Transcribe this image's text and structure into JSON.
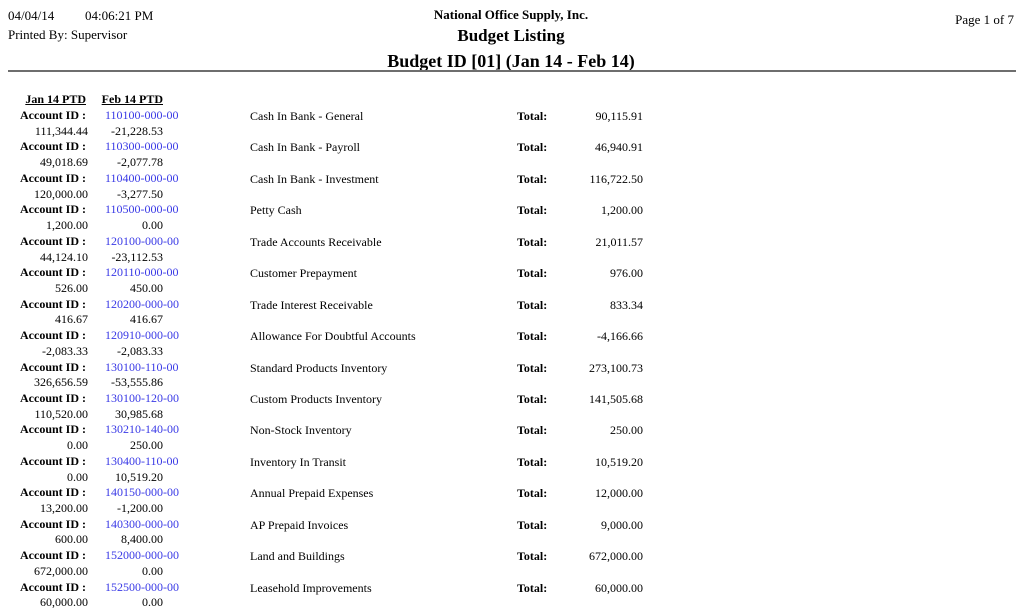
{
  "header": {
    "date": "04/04/14",
    "time": "04:06:21 PM",
    "printed_by_label": "Printed By:",
    "printed_by_value": "Supervisor",
    "company": "National Office Supply, Inc.",
    "report_title": "Budget Listing",
    "report_subtitle": "Budget ID [01] (Jan 14 - Feb 14)",
    "page_indicator": "Page 1 of 7"
  },
  "columns": {
    "jan_header": "Jan 14 PTD",
    "feb_header": "Feb 14 PTD"
  },
  "labels": {
    "account_id": "Account ID :",
    "total": "Total:"
  },
  "colors": {
    "account_link": "#3939e6",
    "rule": "#6e6e6e",
    "text": "#000000"
  },
  "rows": [
    {
      "account_id": "110100-000-00",
      "description": "Cash In Bank - General",
      "total": "90,115.91",
      "jan": "111,344.44",
      "feb": "-21,228.53"
    },
    {
      "account_id": "110300-000-00",
      "description": "Cash In Bank - Payroll",
      "total": "46,940.91",
      "jan": "49,018.69",
      "feb": "-2,077.78"
    },
    {
      "account_id": "110400-000-00",
      "description": "Cash In Bank - Investment",
      "total": "116,722.50",
      "jan": "120,000.00",
      "feb": "-3,277.50"
    },
    {
      "account_id": "110500-000-00",
      "description": "Petty Cash",
      "total": "1,200.00",
      "jan": "1,200.00",
      "feb": "0.00"
    },
    {
      "account_id": "120100-000-00",
      "description": "Trade Accounts Receivable",
      "total": "21,011.57",
      "jan": "44,124.10",
      "feb": "-23,112.53"
    },
    {
      "account_id": "120110-000-00",
      "description": "Customer Prepayment",
      "total": "976.00",
      "jan": "526.00",
      "feb": "450.00"
    },
    {
      "account_id": "120200-000-00",
      "description": "Trade Interest Receivable",
      "total": "833.34",
      "jan": "416.67",
      "feb": "416.67"
    },
    {
      "account_id": "120910-000-00",
      "description": "Allowance For Doubtful Accounts",
      "total": "-4,166.66",
      "jan": "-2,083.33",
      "feb": "-2,083.33"
    },
    {
      "account_id": "130100-110-00",
      "description": "Standard Products Inventory",
      "total": "273,100.73",
      "jan": "326,656.59",
      "feb": "-53,555.86"
    },
    {
      "account_id": "130100-120-00",
      "description": "Custom Products Inventory",
      "total": "141,505.68",
      "jan": "110,520.00",
      "feb": "30,985.68"
    },
    {
      "account_id": "130210-140-00",
      "description": "Non-Stock Inventory",
      "total": "250.00",
      "jan": "0.00",
      "feb": "250.00"
    },
    {
      "account_id": "130400-110-00",
      "description": "Inventory In Transit",
      "total": "10,519.20",
      "jan": "0.00",
      "feb": "10,519.20"
    },
    {
      "account_id": "140150-000-00",
      "description": "Annual Prepaid Expenses",
      "total": "12,000.00",
      "jan": "13,200.00",
      "feb": "-1,200.00"
    },
    {
      "account_id": "140300-000-00",
      "description": "AP Prepaid Invoices",
      "total": "9,000.00",
      "jan": "600.00",
      "feb": "8,400.00"
    },
    {
      "account_id": "152000-000-00",
      "description": "Land and Buildings",
      "total": "672,000.00",
      "jan": "672,000.00",
      "feb": "0.00"
    },
    {
      "account_id": "152500-000-00",
      "description": "Leasehold Improvements",
      "total": "60,000.00",
      "jan": "60,000.00",
      "feb": "0.00"
    }
  ]
}
